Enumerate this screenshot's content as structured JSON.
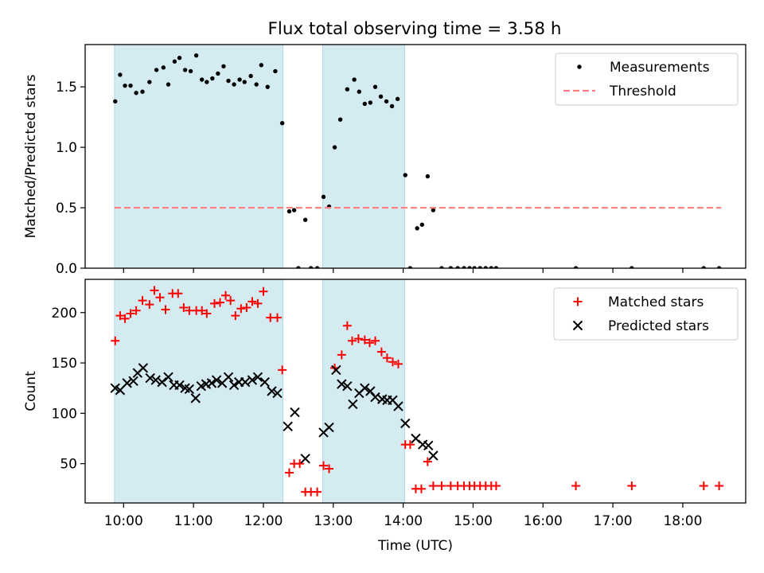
{
  "figure": {
    "title": "Flux total observing time = 3.58 h"
  },
  "chart_data": [
    {
      "type": "scatter",
      "ylabel": "Matched/Predicted stars",
      "xlim": [
        9.45,
        18.9
      ],
      "ylim": [
        0,
        1.85
      ],
      "yticks": [
        0.0,
        0.5,
        1.0,
        1.5
      ],
      "ytick_labels": [
        "0.0",
        "0.5",
        "1.0",
        "1.5"
      ],
      "shaded_intervals": [
        [
          9.87,
          12.28
        ],
        [
          12.85,
          14.02
        ]
      ],
      "shade_color": "#add8e6",
      "legend": {
        "position": "top-right",
        "entries": [
          "Measurements",
          "Threshold"
        ]
      },
      "series": [
        {
          "name": "Measurements",
          "marker": "dot",
          "color": "#000000",
          "points": [
            [
              9.88,
              1.38
            ],
            [
              9.95,
              1.6
            ],
            [
              10.02,
              1.51
            ],
            [
              10.1,
              1.51
            ],
            [
              10.18,
              1.45
            ],
            [
              10.27,
              1.46
            ],
            [
              10.37,
              1.54
            ],
            [
              10.47,
              1.64
            ],
            [
              10.57,
              1.66
            ],
            [
              10.64,
              1.52
            ],
            [
              10.73,
              1.71
            ],
            [
              10.8,
              1.74
            ],
            [
              10.88,
              1.64
            ],
            [
              10.96,
              1.63
            ],
            [
              11.04,
              1.76
            ],
            [
              11.12,
              1.56
            ],
            [
              11.19,
              1.54
            ],
            [
              11.27,
              1.57
            ],
            [
              11.35,
              1.61
            ],
            [
              11.43,
              1.67
            ],
            [
              11.5,
              1.55
            ],
            [
              11.58,
              1.52
            ],
            [
              11.66,
              1.56
            ],
            [
              11.73,
              1.54
            ],
            [
              11.82,
              1.59
            ],
            [
              11.9,
              1.52
            ],
            [
              11.97,
              1.68
            ],
            [
              12.06,
              1.5
            ],
            [
              12.17,
              1.63
            ],
            [
              12.27,
              1.2
            ],
            [
              12.37,
              0.47
            ],
            [
              12.44,
              0.48
            ],
            [
              12.5,
              0.0
            ],
            [
              12.6,
              0.4
            ],
            [
              12.68,
              0.0
            ],
            [
              12.77,
              0.0
            ],
            [
              12.86,
              0.59
            ],
            [
              12.94,
              0.51
            ],
            [
              13.02,
              1.0
            ],
            [
              13.1,
              1.23
            ],
            [
              13.2,
              1.48
            ],
            [
              13.3,
              1.56
            ],
            [
              13.37,
              1.46
            ],
            [
              13.45,
              1.36
            ],
            [
              13.53,
              1.37
            ],
            [
              13.6,
              1.5
            ],
            [
              13.68,
              1.42
            ],
            [
              13.76,
              1.38
            ],
            [
              13.84,
              1.34
            ],
            [
              13.92,
              1.4
            ],
            [
              14.03,
              0.77
            ],
            [
              14.1,
              0.0
            ],
            [
              14.2,
              0.33
            ],
            [
              14.27,
              0.36
            ],
            [
              14.35,
              0.76
            ],
            [
              14.43,
              0.48
            ],
            [
              14.55,
              0.0
            ],
            [
              14.68,
              0.0
            ],
            [
              14.78,
              0.0
            ],
            [
              14.87,
              0.0
            ],
            [
              14.95,
              0.0
            ],
            [
              15.02,
              0.0
            ],
            [
              15.1,
              0.0
            ],
            [
              15.18,
              0.0
            ],
            [
              15.26,
              0.0
            ],
            [
              15.33,
              0.0
            ],
            [
              16.47,
              0.0
            ],
            [
              17.27,
              0.0
            ],
            [
              18.3,
              0.0
            ],
            [
              18.52,
              0.0
            ]
          ]
        },
        {
          "name": "Threshold",
          "marker": "dashed-line",
          "color": "#ff7f7f",
          "x": [
            9.87,
            18.55
          ],
          "y": [
            0.5,
            0.5
          ]
        }
      ]
    },
    {
      "type": "scatter",
      "xlabel": "Time (UTC)",
      "ylabel": "Count",
      "xlim": [
        9.45,
        18.9
      ],
      "ylim": [
        11,
        233
      ],
      "xticks": [
        10,
        11,
        12,
        13,
        14,
        15,
        16,
        17,
        18
      ],
      "xtick_labels": [
        "10:00",
        "11:00",
        "12:00",
        "13:00",
        "14:00",
        "15:00",
        "16:00",
        "17:00",
        "18:00"
      ],
      "yticks": [
        50,
        100,
        150,
        200
      ],
      "ytick_labels": [
        "50",
        "100",
        "150",
        "200"
      ],
      "shaded_intervals": [
        [
          9.87,
          12.28
        ],
        [
          12.85,
          14.02
        ]
      ],
      "shade_color": "#add8e6",
      "legend": {
        "position": "top-right",
        "entries": [
          "Matched stars",
          "Predicted stars"
        ]
      },
      "series": [
        {
          "name": "Matched stars",
          "marker": "plus",
          "color": "#ff0000",
          "points": [
            [
              9.88,
              172
            ],
            [
              9.95,
              197
            ],
            [
              10.02,
              194
            ],
            [
              10.1,
              199
            ],
            [
              10.18,
              202
            ],
            [
              10.27,
              212
            ],
            [
              10.37,
              208
            ],
            [
              10.44,
              222
            ],
            [
              10.52,
              215
            ],
            [
              10.6,
              203
            ],
            [
              10.7,
              219
            ],
            [
              10.78,
              219
            ],
            [
              10.86,
              205
            ],
            [
              10.94,
              202
            ],
            [
              11.04,
              202
            ],
            [
              11.12,
              202
            ],
            [
              11.19,
              199
            ],
            [
              11.3,
              209
            ],
            [
              11.38,
              210
            ],
            [
              11.46,
              217
            ],
            [
              11.53,
              212
            ],
            [
              11.6,
              197
            ],
            [
              11.68,
              204
            ],
            [
              11.76,
              205
            ],
            [
              11.84,
              211
            ],
            [
              11.92,
              209
            ],
            [
              12.0,
              221
            ],
            [
              12.1,
              195
            ],
            [
              12.2,
              195
            ],
            [
              12.27,
              143
            ],
            [
              12.37,
              41
            ],
            [
              12.44,
              50
            ],
            [
              12.52,
              50
            ],
            [
              12.6,
              22
            ],
            [
              12.68,
              22
            ],
            [
              12.77,
              22
            ],
            [
              12.86,
              48
            ],
            [
              12.94,
              45
            ],
            [
              13.02,
              145
            ],
            [
              13.12,
              158
            ],
            [
              13.2,
              187
            ],
            [
              13.27,
              172
            ],
            [
              13.36,
              174
            ],
            [
              13.45,
              173
            ],
            [
              13.52,
              170
            ],
            [
              13.6,
              172
            ],
            [
              13.69,
              161
            ],
            [
              13.77,
              155
            ],
            [
              13.85,
              151
            ],
            [
              13.93,
              149
            ],
            [
              14.03,
              69
            ],
            [
              14.1,
              69
            ],
            [
              14.18,
              25
            ],
            [
              14.26,
              25
            ],
            [
              14.35,
              52
            ],
            [
              14.43,
              28
            ],
            [
              14.55,
              28
            ],
            [
              14.68,
              28
            ],
            [
              14.78,
              28
            ],
            [
              14.87,
              28
            ],
            [
              14.95,
              28
            ],
            [
              15.02,
              28
            ],
            [
              15.1,
              28
            ],
            [
              15.18,
              28
            ],
            [
              15.26,
              28
            ],
            [
              15.33,
              28
            ],
            [
              16.47,
              28
            ],
            [
              17.27,
              28
            ],
            [
              18.3,
              28
            ],
            [
              18.52,
              28
            ]
          ]
        },
        {
          "name": "Predicted stars",
          "marker": "x",
          "color": "#000000",
          "points": [
            [
              9.88,
              125
            ],
            [
              9.95,
              123
            ],
            [
              10.05,
              130
            ],
            [
              10.14,
              132
            ],
            [
              10.2,
              140
            ],
            [
              10.28,
              145
            ],
            [
              10.38,
              135
            ],
            [
              10.46,
              133
            ],
            [
              10.55,
              131
            ],
            [
              10.64,
              136
            ],
            [
              10.72,
              128
            ],
            [
              10.8,
              128
            ],
            [
              10.88,
              125
            ],
            [
              10.94,
              124
            ],
            [
              11.03,
              115
            ],
            [
              11.11,
              127
            ],
            [
              11.18,
              129
            ],
            [
              11.26,
              130
            ],
            [
              11.33,
              133
            ],
            [
              11.41,
              130
            ],
            [
              11.5,
              136
            ],
            [
              11.58,
              128
            ],
            [
              11.65,
              131
            ],
            [
              11.74,
              131
            ],
            [
              11.84,
              133
            ],
            [
              11.92,
              136
            ],
            [
              12.02,
              131
            ],
            [
              12.12,
              122
            ],
            [
              12.2,
              120
            ],
            [
              12.35,
              87
            ],
            [
              12.45,
              101
            ],
            [
              12.6,
              55
            ],
            [
              12.86,
              81
            ],
            [
              12.94,
              86
            ],
            [
              13.04,
              143
            ],
            [
              13.12,
              129
            ],
            [
              13.2,
              127
            ],
            [
              13.28,
              109
            ],
            [
              13.37,
              120
            ],
            [
              13.45,
              125
            ],
            [
              13.53,
              122
            ],
            [
              13.6,
              116
            ],
            [
              13.7,
              114
            ],
            [
              13.77,
              113
            ],
            [
              13.85,
              113
            ],
            [
              13.93,
              107
            ],
            [
              14.03,
              90
            ],
            [
              14.18,
              75
            ],
            [
              14.28,
              69
            ],
            [
              14.36,
              68
            ],
            [
              14.43,
              58
            ]
          ]
        }
      ]
    }
  ]
}
